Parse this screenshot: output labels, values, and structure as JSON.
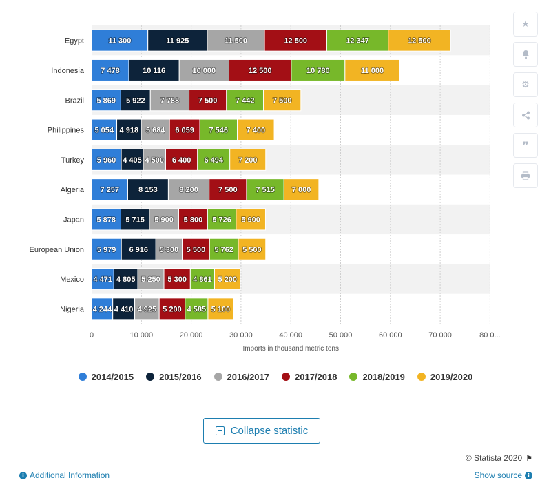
{
  "toolbar": {
    "icons": [
      "star-icon",
      "bell-icon",
      "gear-icon",
      "share-icon",
      "quote-icon",
      "print-icon"
    ]
  },
  "chart_data": {
    "type": "bar",
    "orientation": "horizontal",
    "stacked": true,
    "title": "",
    "xlabel": "Imports in thousand metric tons",
    "ylabel": "",
    "xlim": [
      0,
      80000
    ],
    "x_ticks": [
      "0",
      "10 000",
      "20 000",
      "30 000",
      "40 000",
      "50 000",
      "60 000",
      "70 000",
      "80 0..."
    ],
    "grid": true,
    "legend_position": "bottom",
    "categories": [
      "Egypt",
      "Indonesia",
      "Brazil",
      "Philippines",
      "Turkey",
      "Algeria",
      "Japan",
      "European Union",
      "Mexico",
      "Nigeria"
    ],
    "series": [
      {
        "name": "2014/2015",
        "color": "#2f7ed8",
        "values": [
          11300,
          7478,
          5869,
          5054,
          5960,
          7257,
          5878,
          5979,
          4471,
          4244
        ],
        "labels": [
          "11 300",
          "7 478",
          "5 869",
          "5 054",
          "5 960",
          "7 257",
          "5 878",
          "5 979",
          "4 471",
          "4 244"
        ]
      },
      {
        "name": "2015/2016",
        "color": "#0d233a",
        "values": [
          11925,
          10116,
          5922,
          4918,
          4405,
          8153,
          5715,
          6916,
          4805,
          4410
        ],
        "labels": [
          "11 925",
          "10 116",
          "5 922",
          "4 918",
          "4 405",
          "8 153",
          "5 715",
          "6 916",
          "4 805",
          "4 410"
        ]
      },
      {
        "name": "2016/2017",
        "color": "#a6a6a6",
        "values": [
          11500,
          10000,
          7788,
          5684,
          4500,
          8200,
          5900,
          5300,
          5250,
          4925
        ],
        "labels": [
          "11 500",
          "10 000",
          "7 788",
          "5 684",
          "4 500",
          "8 200",
          "5 900",
          "5 300",
          "5 250",
          "4 925"
        ]
      },
      {
        "name": "2017/2018",
        "color": "#a30f15",
        "values": [
          12500,
          12500,
          7500,
          6059,
          6400,
          7500,
          5800,
          5500,
          5300,
          5200
        ],
        "labels": [
          "12 500",
          "12 500",
          "7 500",
          "6 059",
          "6 400",
          "7 500",
          "5 800",
          "5 500",
          "5 300",
          "5 200"
        ]
      },
      {
        "name": "2018/2019",
        "color": "#77b82a",
        "values": [
          12347,
          10780,
          7442,
          7546,
          6494,
          7515,
          5726,
          5762,
          4861,
          4585
        ],
        "labels": [
          "12 347",
          "10 780",
          "7 442",
          "7 546",
          "6 494",
          "7 515",
          "5 726",
          "5 762",
          "4 861",
          "4 585"
        ]
      },
      {
        "name": "2019/2020",
        "color": "#f2b423",
        "values": [
          12500,
          11000,
          7500,
          7400,
          7200,
          7000,
          5900,
          5500,
          5200,
          5100
        ],
        "labels": [
          "12 500",
          "11 000",
          "7 500",
          "7 400",
          "7 200",
          "7 000",
          "5 900",
          "5 500",
          "5 200",
          "5 100"
        ]
      }
    ]
  },
  "actions": {
    "collapse_label": "Collapse statistic",
    "credit": "© Statista 2020",
    "additional_info": "Additional Information",
    "show_source": "Show source"
  }
}
